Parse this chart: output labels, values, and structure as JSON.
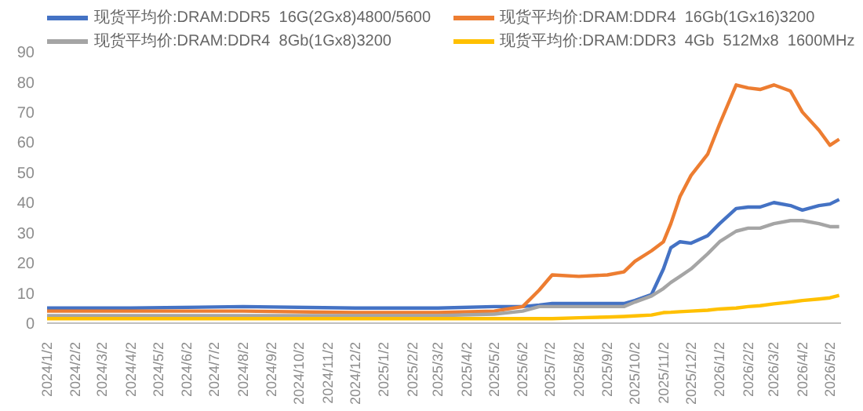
{
  "chart_data": {
    "type": "line",
    "legend": "top",
    "x": [
      "2024-01-02",
      "2024-04-02",
      "2024-08-02",
      "2024-12-02",
      "2025-03-02",
      "2025-05-02",
      "2025-06-02",
      "2025-06-20",
      "2025-07-04",
      "2025-08-02",
      "2025-09-02",
      "2025-09-20",
      "2025-10-02",
      "2025-10-20",
      "2025-11-02",
      "2025-11-10",
      "2025-11-20",
      "2025-12-02",
      "2025-12-20",
      "2026-01-02",
      "2026-01-20",
      "2026-02-02",
      "2026-02-15",
      "2026-03-02",
      "2026-03-20",
      "2026-04-02",
      "2026-04-20",
      "2026-05-02",
      "2026-05-12"
    ],
    "xlim": [
      "2024-01-02",
      "2026-05-14"
    ],
    "xticks": [
      {
        "value": "2024-01-02",
        "label": "2024/1/2"
      },
      {
        "value": "2024-02-02",
        "label": "2024/2/2"
      },
      {
        "value": "2024-03-02",
        "label": "2024/3/2"
      },
      {
        "value": "2024-04-02",
        "label": "2024/4/2"
      },
      {
        "value": "2024-05-02",
        "label": "2024/5/2"
      },
      {
        "value": "2024-06-02",
        "label": "2024/6/2"
      },
      {
        "value": "2024-07-02",
        "label": "2024/7/2"
      },
      {
        "value": "2024-08-02",
        "label": "2024/8/2"
      },
      {
        "value": "2024-09-02",
        "label": "2024/9/2"
      },
      {
        "value": "2024-10-02",
        "label": "2024/10/2"
      },
      {
        "value": "2024-11-02",
        "label": "2024/11/2"
      },
      {
        "value": "2024-12-02",
        "label": "2024/12/2"
      },
      {
        "value": "2025-01-02",
        "label": "2025/1/2"
      },
      {
        "value": "2025-02-02",
        "label": "2025/2/2"
      },
      {
        "value": "2025-03-02",
        "label": "2025/3/2"
      },
      {
        "value": "2025-04-02",
        "label": "2025/4/2"
      },
      {
        "value": "2025-05-02",
        "label": "2025/5/2"
      },
      {
        "value": "2025-06-02",
        "label": "2025/6/2"
      },
      {
        "value": "2025-07-02",
        "label": "2025/7/2"
      },
      {
        "value": "2025-08-02",
        "label": "2025/8/2"
      },
      {
        "value": "2025-09-02",
        "label": "2025/9/2"
      },
      {
        "value": "2025-10-02",
        "label": "2025/10/2"
      },
      {
        "value": "2025-11-02",
        "label": "2025/11/2"
      },
      {
        "value": "2025-12-02",
        "label": "2025/12/2"
      },
      {
        "value": "2026-01-02",
        "label": "2026/1/2"
      },
      {
        "value": "2026-02-02",
        "label": "2026/2/2"
      },
      {
        "value": "2026-03-02",
        "label": "2026/3/2"
      },
      {
        "value": "2026-04-02",
        "label": "2026/4/2"
      },
      {
        "value": "2026-05-02",
        "label": "2026/5/2"
      }
    ],
    "ylim": [
      0,
      90
    ],
    "yticks": [
      0,
      10,
      20,
      30,
      40,
      50,
      60,
      70,
      80,
      90
    ],
    "series": [
      {
        "name": "现货平均价:DRAM:DDR5  16G(2Gx8)4800/5600",
        "color": "#4472c4",
        "values": [
          5,
          5,
          5.5,
          5,
          5,
          5.5,
          5.5,
          6,
          6.5,
          6.5,
          6.5,
          6.5,
          7.5,
          9.5,
          18,
          25,
          27,
          26.5,
          29,
          33,
          38,
          38.5,
          38.5,
          40,
          39,
          37.5,
          39,
          39.5,
          41
        ]
      },
      {
        "name": "现货平均价:DRAM:DDR4  16Gb(1Gx16)3200",
        "color": "#ed7d31",
        "values": [
          4,
          4,
          4,
          3.5,
          3.5,
          4,
          5.5,
          11,
          16,
          15.5,
          16,
          17,
          20.5,
          24,
          27,
          33,
          42,
          49,
          56,
          66,
          79,
          78,
          77.5,
          79,
          77,
          70,
          64,
          59,
          61
        ]
      },
      {
        "name": "现货平均价:DRAM:DDR4  8Gb(1Gx8)3200",
        "color": "#a5a5a5",
        "values": [
          2.5,
          2.5,
          2.5,
          2.5,
          2.5,
          3,
          4,
          5.5,
          5.5,
          5.5,
          5.5,
          5.5,
          7,
          9,
          11.5,
          13.5,
          15.5,
          18,
          23,
          27,
          30.5,
          31.5,
          31.5,
          33,
          34,
          34,
          33,
          32,
          32
        ]
      },
      {
        "name": "现货平均价:DRAM:DDR3  4Gb  512Mx8  1600MHz",
        "color": "#ffc000",
        "values": [
          1.5,
          1.5,
          1.5,
          1.5,
          1.5,
          1.5,
          1.5,
          1.5,
          1.5,
          1.8,
          2,
          2.2,
          2.4,
          2.7,
          3.5,
          3.6,
          3.8,
          4,
          4.3,
          4.7,
          5,
          5.5,
          5.8,
          6.4,
          7,
          7.5,
          8,
          8.4,
          9.2
        ]
      }
    ]
  }
}
